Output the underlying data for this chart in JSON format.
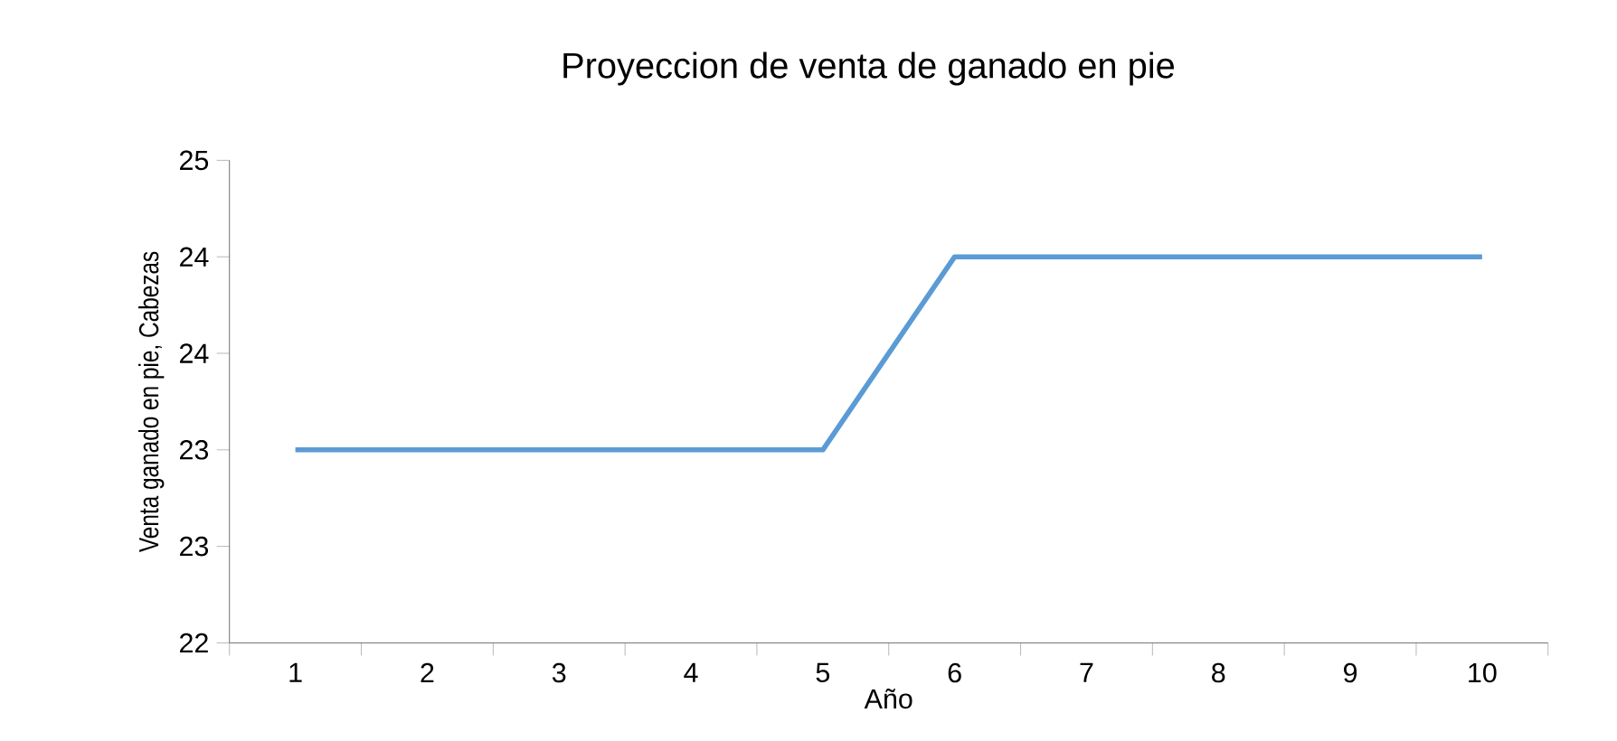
{
  "chart_data": {
    "type": "line",
    "title": "Proyeccion de venta de ganado en pie",
    "xlabel": "Año",
    "ylabel": "Venta ganado en pie, Cabezas",
    "categories": [
      "1",
      "2",
      "3",
      "4",
      "5",
      "6",
      "7",
      "8",
      "9",
      "10"
    ],
    "series": [
      {
        "color": "#5b9bd5",
        "values": [
          23.2,
          23.2,
          23.2,
          23.2,
          23.2,
          24.4,
          24.4,
          24.4,
          24.4,
          24.4
        ]
      }
    ],
    "ylim": [
      22,
      25
    ],
    "yticks": [
      22,
      {
        "value": 22.6,
        "label": "23"
      },
      {
        "value": 23.2,
        "label": "23"
      },
      {
        "value": 23.8,
        "label": "24"
      },
      {
        "value": 24.4,
        "label": "24"
      },
      25
    ],
    "grid": false,
    "marker": "none",
    "line_style": "solid"
  }
}
